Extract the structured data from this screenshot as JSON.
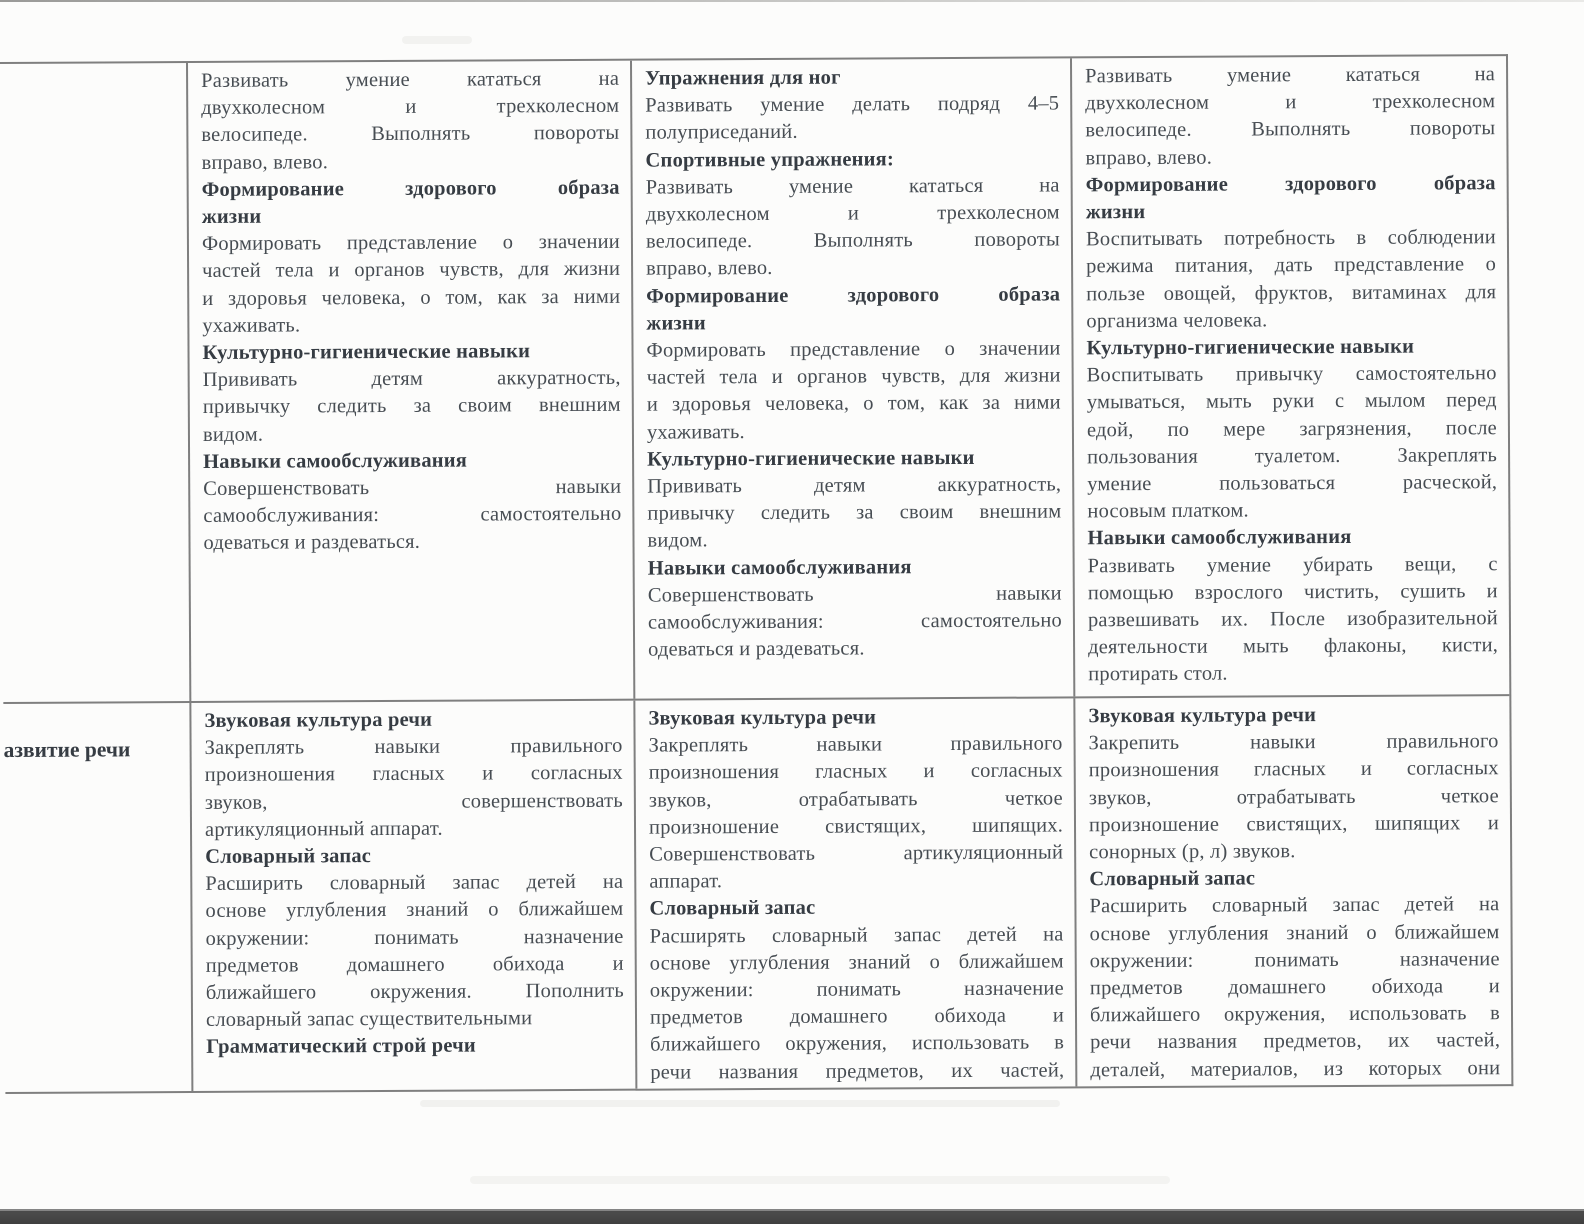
{
  "document": {
    "kind": "scanned curriculum table",
    "language_note": "Russian text, Times-like serif, justified columns"
  },
  "colors": {
    "background": "#fcfcfb",
    "text": "#474d53",
    "heading_text": "#363c43",
    "table_border": "#7f7f7f",
    "scan_bottom_bar": "#3f3f3f"
  },
  "table": {
    "rows": [
      {
        "header": "",
        "cells": [
          [
            {
              "t": "Развивать умение кататься на",
              "j": 1
            },
            {
              "t": "двухколесном и трехколесном",
              "j": 1
            },
            {
              "t": "велосипеде. Выполнять повороты",
              "j": 1
            },
            {
              "t": "вправо, влево."
            },
            {
              "t": "Формирование здорового образа",
              "b": 1,
              "j": 1
            },
            {
              "t": "жизни",
              "b": 1
            },
            {
              "t": "Формировать представление о значении",
              "j": 1
            },
            {
              "t": "частей тела и органов чувств, для жизни",
              "j": 1
            },
            {
              "t": "и здоровья человека, о том, как за ними",
              "j": 1
            },
            {
              "t": "ухаживать."
            },
            {
              "t": "Культурно-гигиенические навыки",
              "b": 1
            },
            {
              "t": "Прививать детям аккуратность,",
              "j": 1
            },
            {
              "t": "привычку следить за своим внешним",
              "j": 1
            },
            {
              "t": "видом."
            },
            {
              "t": "Навыки самообслуживания",
              "b": 1
            },
            {
              "t": "Совершенствовать навыки",
              "j": 1
            },
            {
              "t": "самообслуживания: самостоятельно",
              "j": 1
            },
            {
              "t": "одеваться и раздеваться."
            }
          ],
          [
            {
              "t": "Упражнения для ног",
              "b": 1
            },
            {
              "t": "Развивать умение делать подряд 4–5",
              "j": 1
            },
            {
              "t": "полуприседаний."
            },
            {
              "t": "Спортивные упражнения:",
              "b": 1
            },
            {
              "t": "Развивать умение кататься на",
              "j": 1
            },
            {
              "t": "двухколесном и трехколесном",
              "j": 1
            },
            {
              "t": "велосипеде. Выполнять повороты",
              "j": 1
            },
            {
              "t": "вправо, влево."
            },
            {
              "t": "Формирование здорового образа",
              "b": 1,
              "j": 1
            },
            {
              "t": "жизни",
              "b": 1
            },
            {
              "t": "Формировать представление о значении",
              "j": 1
            },
            {
              "t": "частей тела и органов чувств, для жизни",
              "j": 1
            },
            {
              "t": "и здоровья человека, о том, как за ними",
              "j": 1
            },
            {
              "t": "ухаживать."
            },
            {
              "t": "Культурно-гигиенические навыки",
              "b": 1
            },
            {
              "t": "Прививать детям аккуратность,",
              "j": 1
            },
            {
              "t": "привычку следить за своим внешним",
              "j": 1
            },
            {
              "t": "видом."
            },
            {
              "t": "Навыки самообслуживания",
              "b": 1
            },
            {
              "t": "Совершенствовать навыки",
              "j": 1
            },
            {
              "t": "самообслуживания: самостоятельно",
              "j": 1
            },
            {
              "t": "одеваться и раздеваться."
            }
          ],
          [
            {
              "t": "Развивать умение кататься на",
              "j": 1
            },
            {
              "t": "двухколесном и трехколесном",
              "j": 1
            },
            {
              "t": "велосипеде. Выполнять повороты",
              "j": 1
            },
            {
              "t": "вправо, влево."
            },
            {
              "t": "Формирование здорового образа",
              "b": 1,
              "j": 1
            },
            {
              "t": "жизни",
              "b": 1
            },
            {
              "t": "Воспитывать потребность в соблюдении",
              "j": 1
            },
            {
              "t": "режима питания, дать представление о",
              "j": 1
            },
            {
              "t": "пользе овощей, фруктов, витаминах для",
              "j": 1
            },
            {
              "t": "организма человека."
            },
            {
              "t": "Культурно-гигиенические навыки",
              "b": 1
            },
            {
              "t": "Воспитывать привычку самостоятельно",
              "j": 1
            },
            {
              "t": "умываться, мыть руки с мылом перед",
              "j": 1
            },
            {
              "t": "едой, по мере загрязнения, после",
              "j": 1
            },
            {
              "t": "пользования туалетом. Закреплять",
              "j": 1
            },
            {
              "t": "умение пользоваться расческой,",
              "j": 1
            },
            {
              "t": "носовым платком."
            },
            {
              "t": "Навыки самообслуживания",
              "b": 1
            },
            {
              "t": "Развивать умение убирать вещи, с",
              "j": 1
            },
            {
              "t": "помощью взрослого чистить, сушить и",
              "j": 1
            },
            {
              "t": "развешивать их. После изобразительной",
              "j": 1
            },
            {
              "t": "деятельности мыть флаконы, кисти,",
              "j": 1
            },
            {
              "t": "протирать стол."
            }
          ]
        ]
      },
      {
        "header": "азвитие речи",
        "cells": [
          [
            {
              "t": "Звуковая культура речи",
              "b": 1
            },
            {
              "t": "Закреплять навыки правильного",
              "j": 1
            },
            {
              "t": "произношения гласных и согласных",
              "j": 1
            },
            {
              "t": "звуков, совершенствовать",
              "j": 1
            },
            {
              "t": "артикуляционный аппарат."
            },
            {
              "t": "Словарный запас",
              "b": 1
            },
            {
              "t": "Расширить словарный запас детей на",
              "j": 1
            },
            {
              "t": "основе углубления знаний о ближайшем",
              "j": 1
            },
            {
              "t": "окружении: понимать назначение",
              "j": 1
            },
            {
              "t": "предметов домашнего обихода и",
              "j": 1
            },
            {
              "t": "ближайшего окружения. Пополнить",
              "j": 1
            },
            {
              "t": "словарный запас существительными"
            },
            {
              "t": "Грамматический строй речи",
              "b": 1
            }
          ],
          [
            {
              "t": "Звуковая культура речи",
              "b": 1
            },
            {
              "t": "Закреплять навыки правильного",
              "j": 1
            },
            {
              "t": "произношения гласных и согласных",
              "j": 1
            },
            {
              "t": "звуков, отрабатывать четкое",
              "j": 1
            },
            {
              "t": "произношение свистящих, шипящих.",
              "j": 1
            },
            {
              "t": "Совершенствовать артикуляционный",
              "j": 1
            },
            {
              "t": "аппарат."
            },
            {
              "t": "Словарный запас",
              "b": 1
            },
            {
              "t": "Расширять словарный запас детей на",
              "j": 1
            },
            {
              "t": "основе углубления знаний о ближайшем",
              "j": 1
            },
            {
              "t": "окружении: понимать назначение",
              "j": 1
            },
            {
              "t": "предметов домашнего обихода и",
              "j": 1
            },
            {
              "t": "ближайшего окружения, использовать в",
              "j": 1
            },
            {
              "t": "речи названия предметов, их частей,",
              "j": 1
            }
          ],
          [
            {
              "t": "Звуковая культура речи",
              "b": 1
            },
            {
              "t": "Закрепить навыки правильного",
              "j": 1
            },
            {
              "t": "произношения гласных и согласных",
              "j": 1
            },
            {
              "t": "звуков, отрабатывать четкое",
              "j": 1
            },
            {
              "t": "произношение свистящих, шипящих и",
              "j": 1
            },
            {
              "t": "сонорных (р, л) звуков."
            },
            {
              "t": "Словарный запас",
              "b": 1
            },
            {
              "t": "Расширить словарный запас детей на",
              "j": 1
            },
            {
              "t": "основе углубления знаний о ближайшем",
              "j": 1
            },
            {
              "t": "окружении: понимать назначение",
              "j": 1
            },
            {
              "t": "предметов домашнего обихода и",
              "j": 1
            },
            {
              "t": "ближайшего окружения, использовать в",
              "j": 1
            },
            {
              "t": "речи названия предметов, их частей,",
              "j": 1
            },
            {
              "t": "деталей, материалов, из которых они",
              "j": 1
            }
          ]
        ]
      }
    ]
  }
}
